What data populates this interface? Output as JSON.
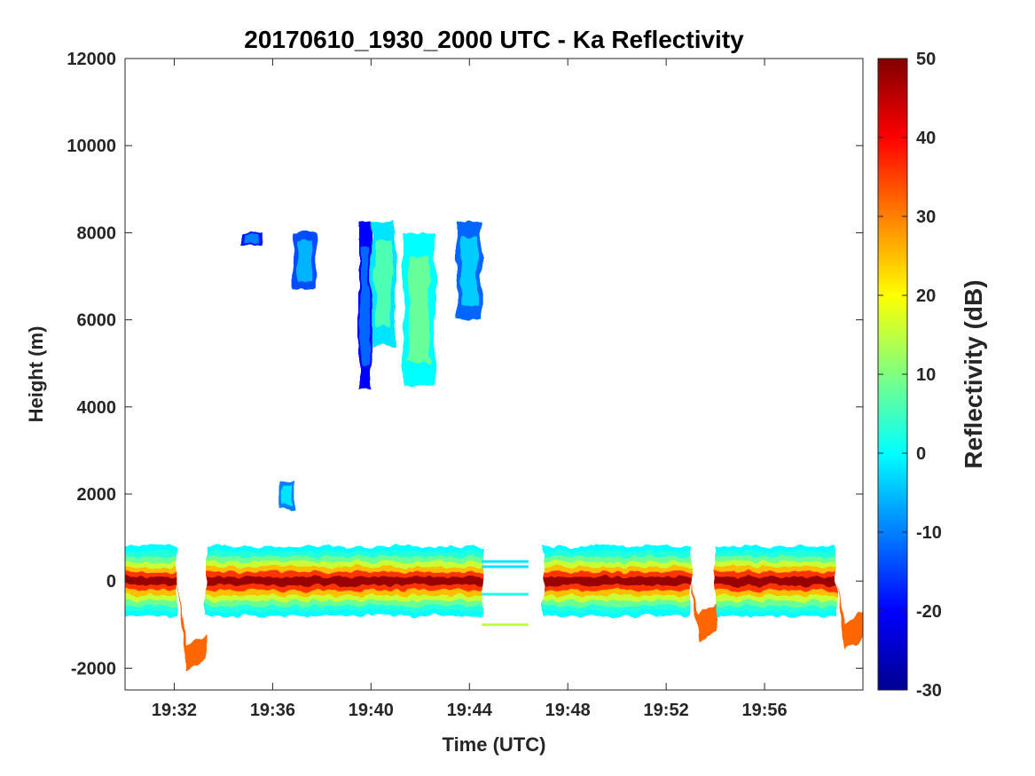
{
  "chart_data": {
    "type": "heatmap",
    "title": "20170610_1930_2000 UTC - Ka Reflectivity",
    "xlabel": "Time (UTC)",
    "ylabel": "Height (m)",
    "colorbar_label": "Reflectivity (dB)",
    "colormap": "jet",
    "x_range_minutes_after_1930": [
      0,
      30
    ],
    "ylim": [
      -2500,
      12000
    ],
    "clim": [
      -30,
      50
    ],
    "x_ticks": [
      {
        "label": "19:32",
        "minute": 2
      },
      {
        "label": "19:36",
        "minute": 6
      },
      {
        "label": "19:40",
        "minute": 10
      },
      {
        "label": "19:44",
        "minute": 14
      },
      {
        "label": "19:48",
        "minute": 18
      },
      {
        "label": "19:52",
        "minute": 22
      },
      {
        "label": "19:56",
        "minute": 26
      }
    ],
    "y_ticks": [
      {
        "label": "-2000",
        "value": -2000
      },
      {
        "label": "0",
        "value": 0
      },
      {
        "label": "2000",
        "value": 2000
      },
      {
        "label": "4000",
        "value": 4000
      },
      {
        "label": "6000",
        "value": 6000
      },
      {
        "label": "8000",
        "value": 8000
      },
      {
        "label": "10000",
        "value": 10000
      },
      {
        "label": "12000",
        "value": 12000
      }
    ],
    "colorbar_ticks": [
      {
        "label": "50",
        "value": 50
      },
      {
        "label": "40",
        "value": 40
      },
      {
        "label": "30",
        "value": 30
      },
      {
        "label": "20",
        "value": 20
      },
      {
        "label": "10",
        "value": 10
      },
      {
        "label": "0",
        "value": 0
      },
      {
        "label": "-10",
        "value": -10
      },
      {
        "label": "-20",
        "value": -20
      },
      {
        "label": "-30",
        "value": -30
      }
    ],
    "surface_segments": [
      {
        "t_start": 0.0,
        "t_end": 2.1,
        "core_height": 0,
        "core_dbz": 48,
        "edge_dbz": 0,
        "half_depth": 800
      },
      {
        "t_start": 3.3,
        "t_end": 14.5,
        "core_height": 0,
        "core_dbz": 48,
        "edge_dbz": 0,
        "half_depth": 800
      },
      {
        "t_start": 17.0,
        "t_end": 23.0,
        "core_height": 0,
        "core_dbz": 48,
        "edge_dbz": 0,
        "half_depth": 800
      },
      {
        "t_start": 24.0,
        "t_end": 28.9,
        "core_height": 0,
        "core_dbz": 48,
        "edge_dbz": 0,
        "half_depth": 800
      }
    ],
    "turn_features": [
      {
        "t_start": 2.1,
        "t_end": 3.3,
        "height": -1500,
        "dbz": 32
      },
      {
        "t_start": 23.0,
        "t_end": 24.0,
        "height": -800,
        "dbz": 32
      },
      {
        "t_start": 28.9,
        "t_end": 30.0,
        "height": -1000,
        "dbz": 32
      }
    ],
    "transit_lines": [
      {
        "t_start": 14.5,
        "t_end": 16.4,
        "height": 450,
        "dbz": -2
      },
      {
        "t_start": 14.5,
        "t_end": 16.4,
        "height": 330,
        "dbz": -2
      },
      {
        "t_start": 14.5,
        "t_end": 16.4,
        "height": -300,
        "dbz": 2
      },
      {
        "t_start": 14.5,
        "t_end": 16.4,
        "height": -1000,
        "dbz": 15
      }
    ],
    "cloud_cells": [
      {
        "t_start": 4.7,
        "t_end": 5.6,
        "h_bottom": 7700,
        "h_top": 8000,
        "dbz": -10
      },
      {
        "t_start": 6.8,
        "t_end": 7.8,
        "h_bottom": 6700,
        "h_top": 8000,
        "dbz": -6
      },
      {
        "t_start": 9.5,
        "t_end": 10.0,
        "h_bottom": 4400,
        "h_top": 8250,
        "dbz": -12
      },
      {
        "t_start": 10.0,
        "t_end": 11.0,
        "h_bottom": 5400,
        "h_top": 8250,
        "dbz": 6
      },
      {
        "t_start": 11.3,
        "t_end": 12.6,
        "h_bottom": 4500,
        "h_top": 8000,
        "dbz": 8
      },
      {
        "t_start": 13.5,
        "t_end": 14.5,
        "h_bottom": 6000,
        "h_top": 8250,
        "dbz": -4
      },
      {
        "t_start": 6.3,
        "t_end": 6.9,
        "h_bottom": 1650,
        "h_top": 2300,
        "dbz": -2
      }
    ]
  }
}
